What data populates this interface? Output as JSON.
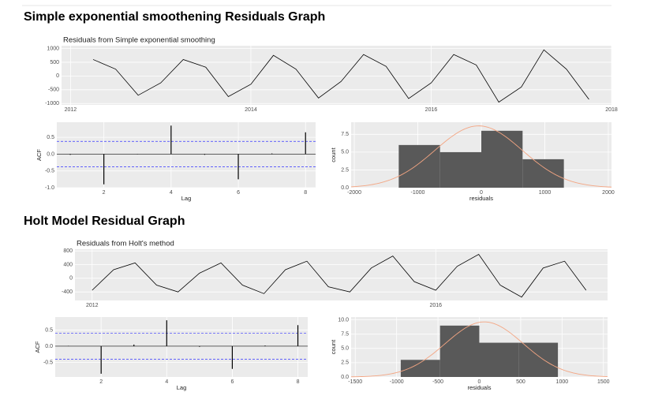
{
  "headings": [
    "Simple exponential smoothening Residuals Graph",
    "Holt Model Residual Graph"
  ],
  "chart_data": [
    {
      "type": "line",
      "title": "Residuals from Simple exponential smoothing",
      "color": "#000000",
      "grid": true,
      "x": [
        2012.25,
        2012.5,
        2012.75,
        2013,
        2013.25,
        2013.5,
        2013.75,
        2014,
        2014.25,
        2014.5,
        2014.75,
        2015,
        2015.25,
        2015.5,
        2015.75,
        2016,
        2016.25,
        2016.5,
        2016.75,
        2017,
        2017.25,
        2017.5,
        2017.75
      ],
      "values": [
        600,
        250,
        -700,
        -250,
        600,
        320,
        -750,
        -300,
        750,
        250,
        -800,
        -200,
        780,
        350,
        -820,
        -250,
        780,
        400,
        -950,
        -400,
        950,
        250,
        -850
      ],
      "xlim": [
        2011.9,
        2018.0
      ],
      "xticks": [
        2012,
        2014,
        2016,
        2018
      ],
      "ylim": [
        -1050,
        1100
      ],
      "yticks": [
        -1000,
        -500,
        0,
        500,
        1000
      ]
    },
    {
      "type": "bar",
      "xlabel": "Lag",
      "ylabel": "ACF",
      "color": "#000000",
      "grid": true,
      "limit_color": "#3333ff",
      "x": [
        1,
        2,
        3,
        4,
        5,
        6,
        7,
        8
      ],
      "values": [
        -0.02,
        -0.9,
        0.01,
        0.85,
        -0.02,
        -0.75,
        0.02,
        0.65
      ],
      "confidence_limits": [
        -0.38,
        0.38
      ],
      "xlim": [
        0.6,
        8.3
      ],
      "xticks": [
        2,
        4,
        6,
        8
      ],
      "ylim": [
        -1.0,
        0.95
      ],
      "yticks": [
        {
          "value": -1.0,
          "label": "-1.0"
        },
        -0.5,
        {
          "value": 0,
          "label": "0.0"
        },
        0.5
      ]
    },
    {
      "type": "histogram",
      "xlabel": "residuals",
      "ylabel": "count",
      "color": "#595959",
      "curve_color": "#f4a582",
      "grid": true,
      "bins": [
        -1300,
        -650,
        0,
        650,
        1300
      ],
      "values": [
        6,
        5,
        8,
        4
      ],
      "xlim": [
        -2050,
        2050
      ],
      "xticks": [
        -2000,
        -1000,
        0,
        1000,
        2000
      ],
      "ylim": [
        0,
        9.2
      ],
      "yticks": [
        {
          "value": 0,
          "label": "0.0"
        },
        2.5,
        {
          "value": 5,
          "label": "5.0"
        },
        7.5
      ]
    },
    {
      "type": "line",
      "title": "Residuals from Holt's method",
      "color": "#000000",
      "grid": true,
      "x": [
        2012,
        2012.25,
        2012.5,
        2012.75,
        2013,
        2013.25,
        2013.5,
        2013.75,
        2014,
        2014.25,
        2014.5,
        2014.75,
        2015,
        2015.25,
        2015.5,
        2015.75,
        2016,
        2016.25,
        2016.5,
        2016.75,
        2017,
        2017.25,
        2017.5,
        2017.75
      ],
      "values": [
        -350,
        250,
        450,
        -200,
        -400,
        150,
        450,
        -200,
        -450,
        250,
        500,
        -250,
        -400,
        300,
        650,
        -100,
        -350,
        350,
        700,
        -200,
        -550,
        300,
        500,
        -350
      ],
      "xlim": [
        2011.8,
        2018.0
      ],
      "xticks": [
        2012,
        2016
      ],
      "ylim": [
        -650,
        850
      ],
      "yticks": [
        -400,
        0,
        400,
        800
      ]
    },
    {
      "type": "bar",
      "xlabel": "Lag",
      "ylabel": "ACF",
      "color": "#000000",
      "grid": true,
      "limit_color": "#3333ff",
      "x": [
        1,
        2,
        3,
        4,
        5,
        6,
        7,
        8
      ],
      "values": [
        0.01,
        -0.85,
        0.05,
        0.8,
        -0.02,
        -0.7,
        0.02,
        0.65
      ],
      "confidence_limits": [
        -0.4,
        0.4
      ],
      "xlim": [
        0.6,
        8.3
      ],
      "xticks": [
        2,
        4,
        6,
        8
      ],
      "ylim": [
        -0.95,
        0.9
      ],
      "yticks": [
        -0.5,
        {
          "value": 0,
          "label": "0.0"
        },
        0.5
      ]
    },
    {
      "type": "histogram",
      "xlabel": "residuals",
      "ylabel": "count",
      "color": "#595959",
      "curve_color": "#f4a582",
      "grid": true,
      "bins": [
        -950,
        -475,
        0,
        475,
        950
      ],
      "values": [
        3,
        9,
        6,
        6
      ],
      "xlim": [
        -1550,
        1550
      ],
      "xticks": [
        -1500,
        -1000,
        -500,
        0,
        500,
        1000,
        1500
      ],
      "ylim": [
        0,
        10.5
      ],
      "yticks": [
        {
          "value": 0,
          "label": "0.0"
        },
        2.5,
        {
          "value": 5,
          "label": "5.0"
        },
        7.5,
        {
          "value": 10,
          "label": "10.0"
        }
      ]
    }
  ]
}
